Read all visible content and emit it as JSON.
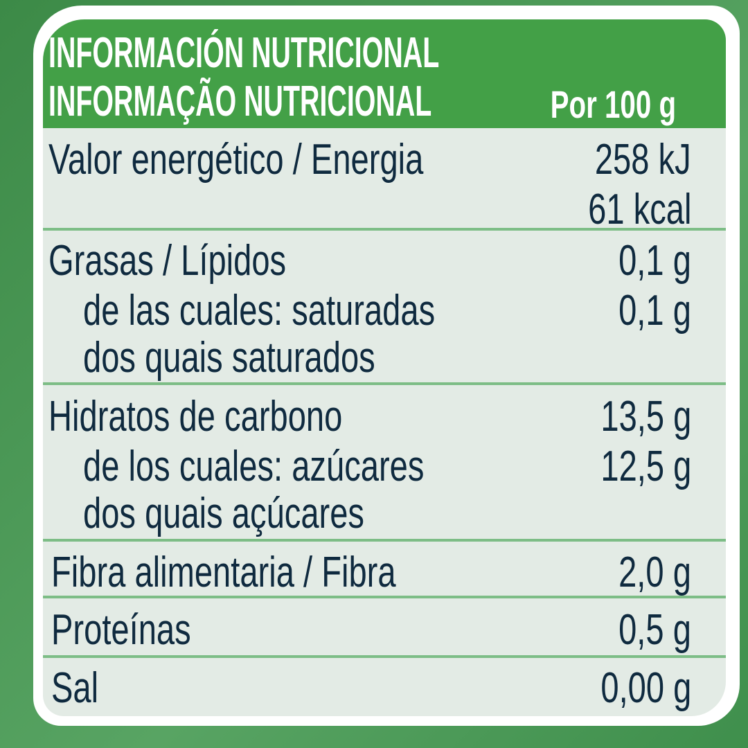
{
  "header": {
    "title_es": "INFORMACIÓN NUTRICIONAL",
    "title_pt": "INFORMAÇÃO NUTRICIONAL",
    "per": "Por 100 g"
  },
  "rows": [
    {
      "label": "Valor energético / Energia",
      "value": "258 kJ",
      "value2": "61 kcal"
    },
    {
      "label": "Grasas / Lípidos",
      "value": "0,1 g",
      "sub": "de las cuales: saturadas",
      "sub2": "dos quais saturados",
      "sub_value": "0,1 g"
    },
    {
      "label": "Hidratos de carbono",
      "value": "13,5 g",
      "sub": "de los cuales: azúcares",
      "sub2": "dos quais açúcares",
      "sub_value": "12,5 g"
    },
    {
      "label": "Fibra alimentaria / Fibra",
      "value": "2,0 g"
    },
    {
      "label": "Proteínas",
      "value": "0,5 g"
    },
    {
      "label": "Sal",
      "value": "0,00 g"
    }
  ],
  "colors": {
    "header_green": "#43a047",
    "text": "#0f2a3f",
    "body": "#e3ebe5",
    "divider": "#7dbd86"
  }
}
